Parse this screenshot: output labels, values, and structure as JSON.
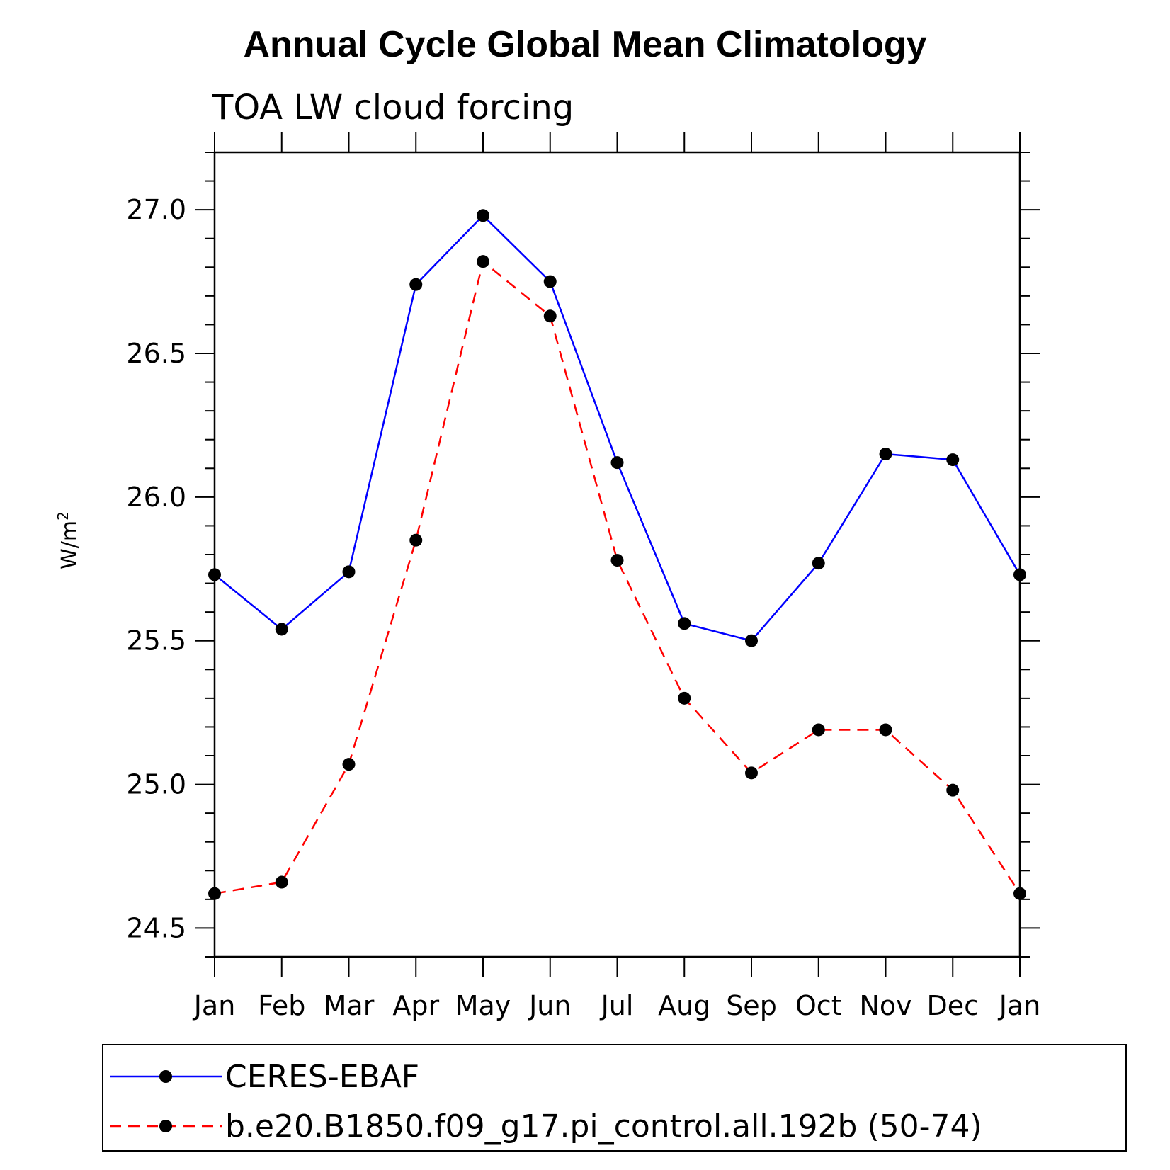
{
  "chart_data": {
    "type": "line",
    "title": "Annual Cycle Global Mean Climatology",
    "subtitle": "TOA LW cloud forcing",
    "ylabel": "W/m",
    "ylabel_superscript": "2",
    "xlabel": "",
    "categories": [
      "Jan",
      "Feb",
      "Mar",
      "Apr",
      "May",
      "Jun",
      "Jul",
      "Aug",
      "Sep",
      "Oct",
      "Nov",
      "Dec",
      "Jan"
    ],
    "ylim": [
      24.4,
      27.2
    ],
    "yticks": [
      24.5,
      25.0,
      25.5,
      26.0,
      26.5,
      27.0
    ],
    "ytick_labels": [
      "24.5",
      "25.0",
      "25.5",
      "26.0",
      "26.5",
      "27.0"
    ],
    "grid": false,
    "legend_position": "bottom",
    "series": [
      {
        "name": "CERES-EBAF",
        "color": "#0000ff",
        "line_style": "solid",
        "values": [
          25.73,
          25.54,
          25.74,
          26.74,
          26.98,
          26.75,
          26.12,
          25.56,
          25.5,
          25.77,
          26.15,
          26.13,
          25.73
        ]
      },
      {
        "name": "b.e20.B1850.f09_g17.pi_control.all.192b (50-74)",
        "color": "#ff0000",
        "line_style": "dashed",
        "values": [
          24.62,
          24.66,
          25.07,
          25.85,
          26.82,
          26.63,
          25.78,
          25.3,
          25.04,
          25.19,
          25.19,
          24.98,
          24.62
        ]
      }
    ]
  }
}
